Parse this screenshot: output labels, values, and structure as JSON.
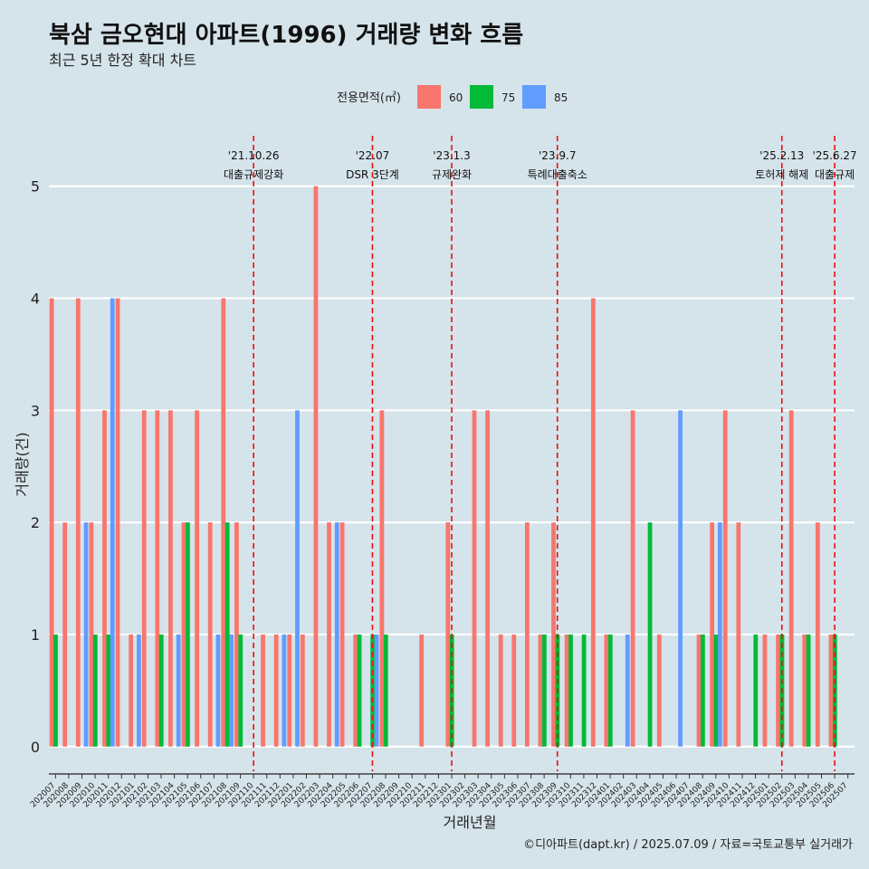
{
  "title": "북삼 금오현대 아파트(1996) 거래량 변화 흐름",
  "subtitle": "최근 5년 한정 확대 차트",
  "caption": "©디아파트(dapt.kr) / 2025.07.09 / 자료=국토교통부 실거래가",
  "chart_data": {
    "type": "bar",
    "xlabel": "거래년월",
    "ylabel": "거래량(건)",
    "ylim": [
      0,
      5
    ],
    "yticks": [
      0,
      1,
      2,
      3,
      4,
      5
    ],
    "grid": true,
    "legend": {
      "title": "전용면적(㎡)",
      "position": "top"
    },
    "categories": [
      "202007",
      "202008",
      "202009",
      "202010",
      "202011",
      "202012",
      "202101",
      "202102",
      "202103",
      "202104",
      "202105",
      "202106",
      "202107",
      "202108",
      "202109",
      "202110",
      "202111",
      "202112",
      "202201",
      "202202",
      "202203",
      "202204",
      "202205",
      "202206",
      "202207",
      "202208",
      "202209",
      "202210",
      "202211",
      "202212",
      "202301",
      "202302",
      "202303",
      "202304",
      "202305",
      "202306",
      "202307",
      "202308",
      "202309",
      "202310",
      "202311",
      "202312",
      "202401",
      "202402",
      "202403",
      "202404",
      "202405",
      "202406",
      "202407",
      "202408",
      "202409",
      "202410",
      "202411",
      "202412",
      "202501",
      "202502",
      "202503",
      "202504",
      "202505",
      "202506",
      "202507"
    ],
    "series": [
      {
        "name": "60",
        "color": "#f8766d",
        "values": [
          4,
          2,
          4,
          2,
          3,
          4,
          1,
          3,
          3,
          3,
          2,
          3,
          2,
          4,
          2,
          0,
          1,
          1,
          1,
          1,
          5,
          2,
          2,
          1,
          0,
          3,
          0,
          0,
          1,
          0,
          2,
          0,
          3,
          3,
          1,
          1,
          2,
          1,
          2,
          1,
          0,
          4,
          1,
          0,
          3,
          0,
          1,
          0,
          0,
          1,
          2,
          3,
          2,
          0,
          1,
          1,
          3,
          1,
          2,
          1,
          0
        ]
      },
      {
        "name": "75",
        "color": "#00ba38",
        "values": [
          1,
          0,
          0,
          1,
          1,
          0,
          0,
          0,
          1,
          0,
          2,
          0,
          0,
          2,
          1,
          0,
          0,
          0,
          0,
          0,
          0,
          0,
          0,
          1,
          1,
          1,
          0,
          0,
          0,
          0,
          1,
          0,
          0,
          0,
          0,
          0,
          0,
          1,
          1,
          1,
          1,
          0,
          1,
          0,
          0,
          2,
          0,
          0,
          0,
          1,
          1,
          0,
          0,
          1,
          0,
          1,
          0,
          1,
          0,
          1,
          0
        ]
      },
      {
        "name": "85",
        "color": "#619cff",
        "values": [
          0,
          0,
          2,
          0,
          4,
          0,
          1,
          0,
          0,
          1,
          0,
          0,
          1,
          1,
          0,
          0,
          0,
          1,
          3,
          0,
          0,
          2,
          0,
          0,
          1,
          0,
          0,
          0,
          0,
          0,
          0,
          0,
          0,
          0,
          0,
          0,
          0,
          0,
          0,
          0,
          0,
          0,
          0,
          1,
          0,
          0,
          0,
          3,
          0,
          0,
          2,
          0,
          0,
          0,
          0,
          0,
          0,
          0,
          0,
          0,
          0
        ]
      }
    ],
    "annotations": [
      {
        "date": "'21.10.26",
        "label": "대출규제강화",
        "at": "202110"
      },
      {
        "date": "'22.07",
        "label": "DSR 3단계",
        "at": "202207"
      },
      {
        "date": "'23.1.3",
        "label": "규제완화",
        "at": "202301"
      },
      {
        "date": "'23.9.7",
        "label": "특례대출축소",
        "at": "202309"
      },
      {
        "date": "'25.2.13",
        "label": "토허제 해제",
        "at": "202502"
      },
      {
        "date": "'25.6.27",
        "label": "대출규제",
        "at": "202506"
      }
    ]
  }
}
